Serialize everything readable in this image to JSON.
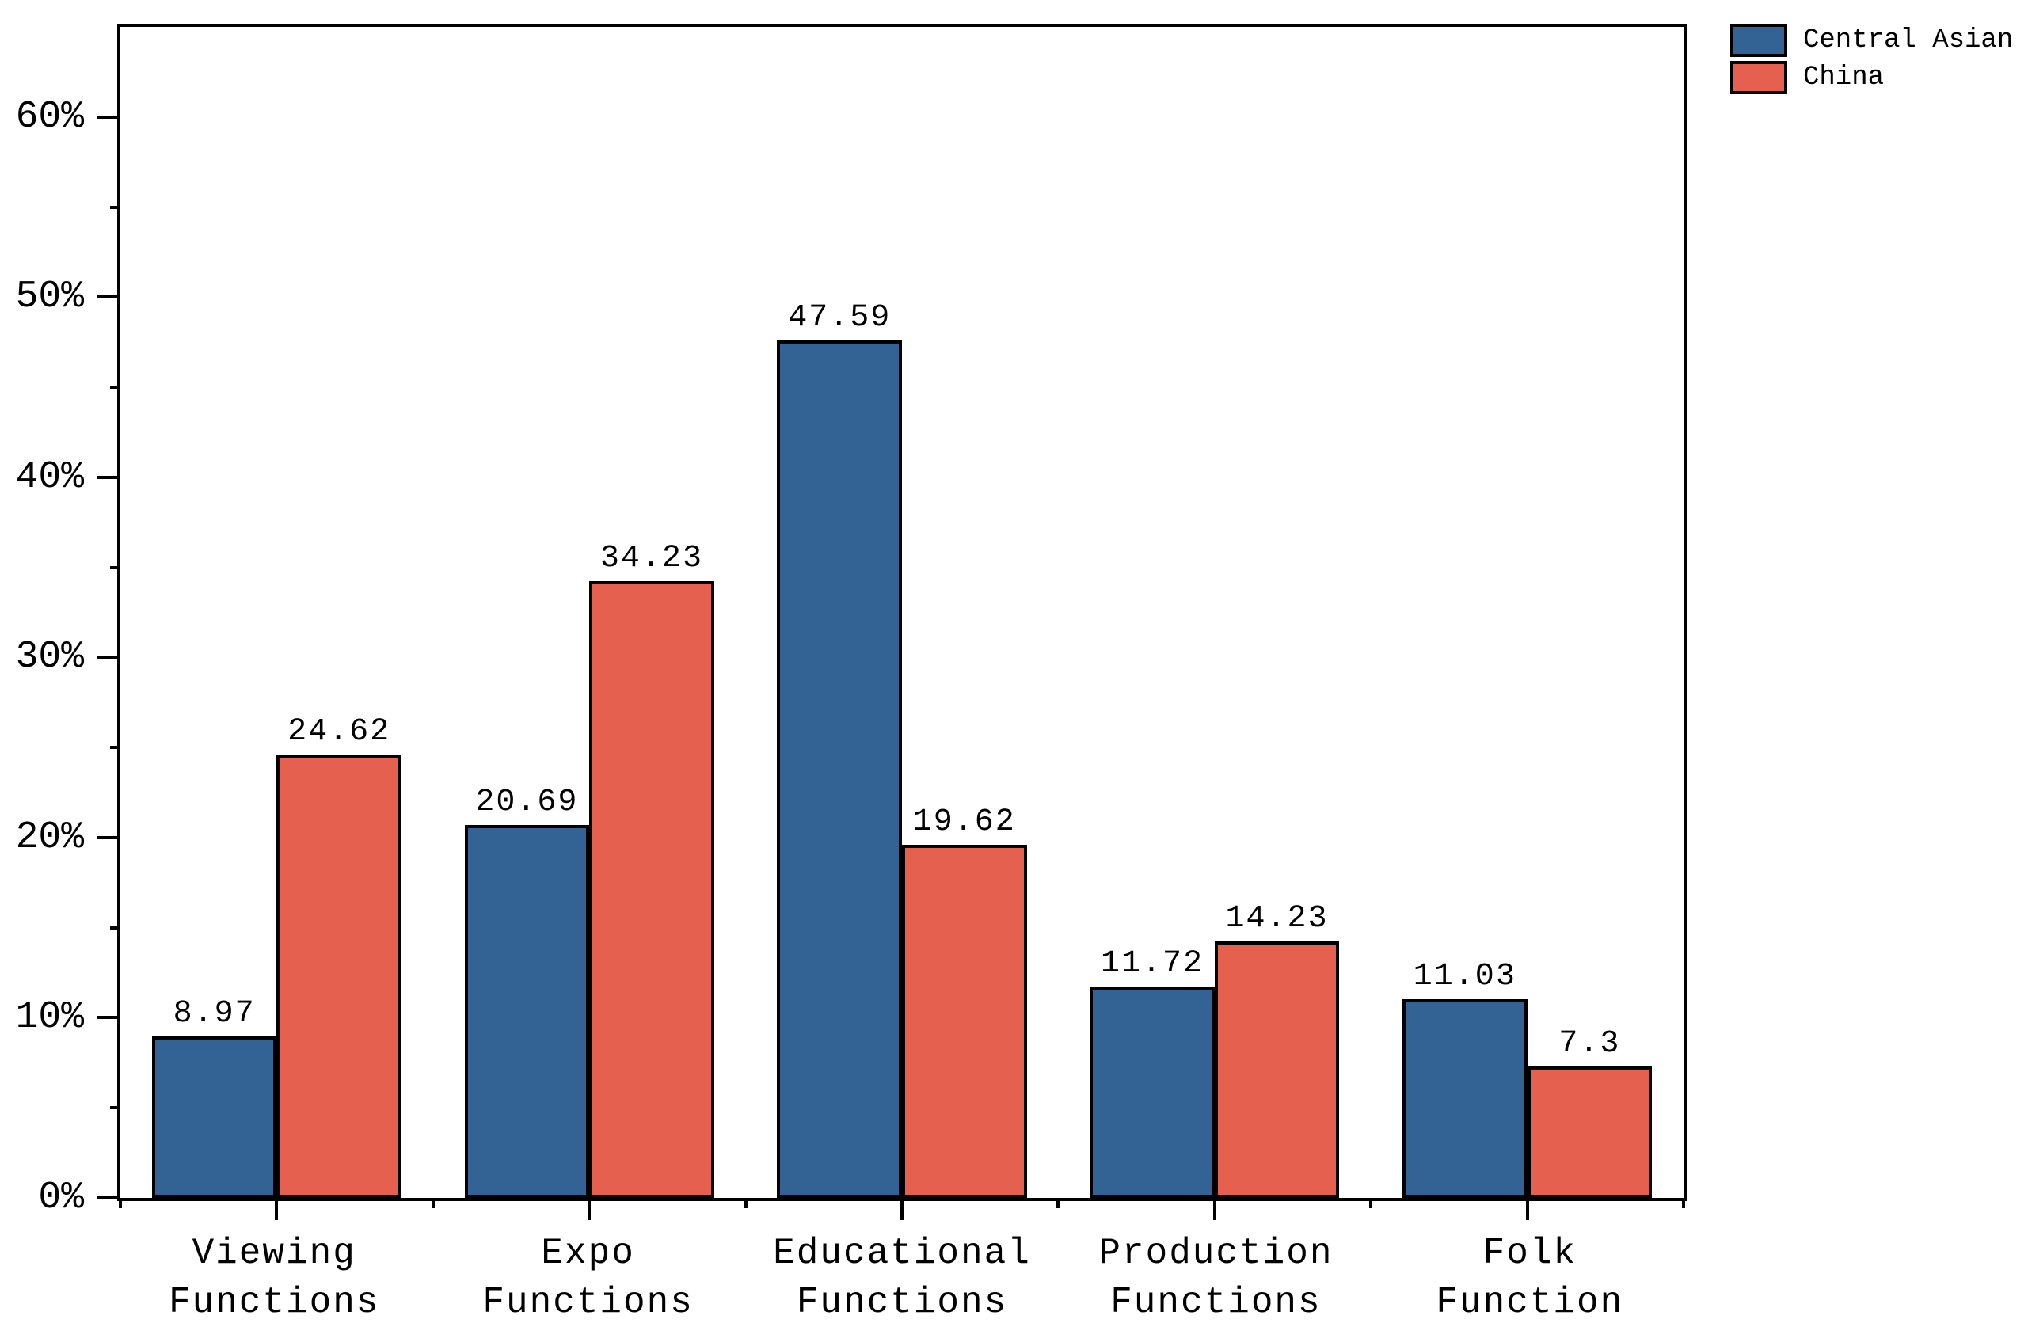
{
  "chart_data": {
    "type": "bar",
    "title": "",
    "xlabel": "",
    "ylabel": "",
    "grid": false,
    "categories": [
      "Viewing\nFunctions",
      "Expo\nFunctions",
      "Educational\nFunctions",
      "Production\nFunctions",
      "Folk\nFunction"
    ],
    "series": [
      {
        "name": "Central Asian",
        "color": "#336295",
        "values": [
          8.97,
          20.69,
          47.59,
          11.72,
          11.03
        ],
        "value_labels": [
          "8.97",
          "20.69",
          "47.59",
          "11.72",
          "11.03"
        ]
      },
      {
        "name": "China",
        "color": "#E6604F",
        "values": [
          24.62,
          34.23,
          19.62,
          14.23,
          7.3
        ],
        "value_labels": [
          "24.62",
          "34.23",
          "19.62",
          "14.23",
          "7.3"
        ]
      }
    ],
    "y_axis": {
      "min": 0,
      "max": 65,
      "unit": "%",
      "major_ticks": [
        {
          "value": 0,
          "label": "0%"
        },
        {
          "value": 10,
          "label": "10%"
        },
        {
          "value": 20,
          "label": "20%"
        },
        {
          "value": 30,
          "label": "30%"
        },
        {
          "value": 40,
          "label": "40%"
        },
        {
          "value": 50,
          "label": "50%"
        },
        {
          "value": 60,
          "label": "60%"
        }
      ],
      "minor_tick_values": [
        5,
        15,
        25,
        35,
        45,
        55
      ]
    },
    "x_axis": {
      "minor_tick_positions_pct": [
        0,
        20,
        40,
        60,
        80,
        100
      ]
    },
    "style": {
      "bar_border_color": "#000000",
      "axis_color": "#000000",
      "background": "#ffffff",
      "legend_position": "top-right"
    }
  }
}
